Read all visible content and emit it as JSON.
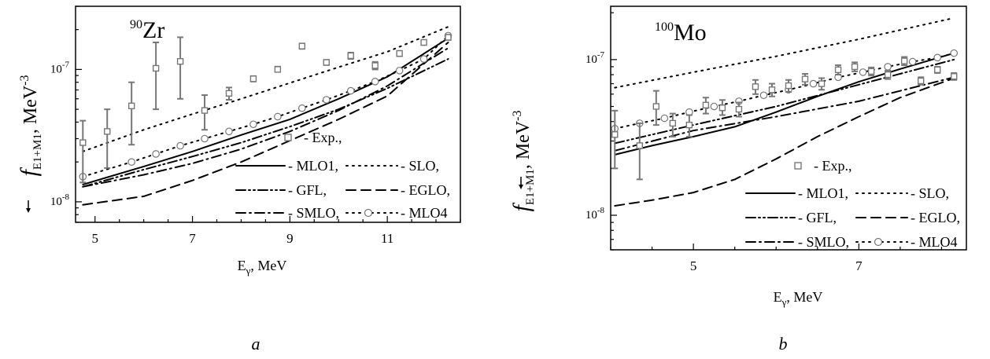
{
  "chart_data": [
    {
      "type": "line",
      "panel_label": "a",
      "title_sup": "90",
      "title_main": "Zr",
      "xlabel_main": "E",
      "xlabel_sub": "γ",
      "xlabel_tail": ", MeV",
      "ylabel_main": "f",
      "ylabel_sub": "E1+M1",
      "ylabel_unit": ", MeV",
      "ylabel_unit_sup": "-3",
      "xlim": [
        4.6,
        12.5
      ],
      "ylim": [
        7e-09,
        3e-07
      ],
      "yscale": "log",
      "x_ticks": [
        5,
        7,
        9,
        11
      ],
      "x_tick_labels": [
        "5",
        "7",
        "9",
        "11"
      ],
      "y_ticks": [
        1e-08,
        1e-07
      ],
      "y_tick_labels": [
        {
          "base": "10",
          "exp": "-8"
        },
        {
          "base": "10",
          "exp": "-7"
        }
      ],
      "legend_entries": [
        {
          "id": "exp",
          "label": "- Exp.,"
        },
        {
          "id": "MLO1",
          "label": "- MLO1,"
        },
        {
          "id": "SLO",
          "label": "- SLO,"
        },
        {
          "id": "GFL",
          "label": "- GFL,"
        },
        {
          "id": "EGLO",
          "label": "- EGLO,"
        },
        {
          "id": "SMLO",
          "label": "- SMLO,"
        },
        {
          "id": "MLO4",
          "label": "- MLO4"
        }
      ],
      "experimental": {
        "name": "Exp.",
        "points": [
          {
            "x": 4.75,
            "y": 2.8e-08,
            "lo": 1.4e-08,
            "hi": 4.1e-08
          },
          {
            "x": 5.25,
            "y": 3.4e-08,
            "lo": 1.8e-08,
            "hi": 5e-08
          },
          {
            "x": 5.75,
            "y": 5.3e-08,
            "lo": 2.7e-08,
            "hi": 8e-08
          },
          {
            "x": 6.25,
            "y": 1.02e-07,
            "lo": 5e-08,
            "hi": 1.6e-07
          },
          {
            "x": 6.75,
            "y": 1.15e-07,
            "lo": 6e-08,
            "hi": 1.75e-07
          },
          {
            "x": 7.25,
            "y": 4.9e-08,
            "lo": 3.5e-08,
            "hi": 6.4e-08
          },
          {
            "x": 7.75,
            "y": 6.6e-08,
            "lo": 5.9e-08,
            "hi": 7.3e-08
          },
          {
            "x": 8.25,
            "y": 8.5e-08,
            "lo": 8.1e-08,
            "hi": 8.9e-08
          },
          {
            "x": 8.75,
            "y": 1e-07,
            "lo": 9.6e-08,
            "hi": 1.05e-07
          },
          {
            "x": 9.25,
            "y": 1.5e-07,
            "lo": 1.43e-07,
            "hi": 1.57e-07
          },
          {
            "x": 9.75,
            "y": 1.13e-07,
            "lo": 1.08e-07,
            "hi": 1.18e-07
          },
          {
            "x": 10.25,
            "y": 1.27e-07,
            "lo": 1.2e-07,
            "hi": 1.34e-07
          },
          {
            "x": 10.75,
            "y": 1.07e-07,
            "lo": 1e-07,
            "hi": 1.14e-07
          },
          {
            "x": 11.25,
            "y": 1.32e-07,
            "lo": 1.26e-07,
            "hi": 1.38e-07
          },
          {
            "x": 11.75,
            "y": 1.6e-07,
            "lo": 1.53e-07,
            "hi": 1.67e-07
          },
          {
            "x": 12.25,
            "y": 1.75e-07,
            "lo": 1.67e-07,
            "hi": 1.83e-07
          }
        ]
      },
      "series": [
        {
          "id": "MLO1",
          "dash": "solid",
          "x": [
            4.75,
            6,
            7,
            8,
            9,
            10,
            11,
            12.25
          ],
          "y": [
            1.35e-08,
            1.85e-08,
            2.4e-08,
            3.2e-08,
            4.2e-08,
            6e-08,
            8.8e-08,
            1.72e-07
          ]
        },
        {
          "id": "SLO",
          "dash": "dot",
          "x": [
            4.75,
            6,
            7,
            8,
            9,
            10,
            11,
            12.25
          ],
          "y": [
            2.4e-08,
            3.5e-08,
            4.6e-08,
            6e-08,
            7.9e-08,
            1.04e-07,
            1.36e-07,
            2.1e-07
          ]
        },
        {
          "id": "GFL",
          "dash": "dashdotdot",
          "x": [
            4.75,
            6,
            7,
            8,
            9,
            10,
            11,
            12.25
          ],
          "y": [
            1.3e-08,
            1.75e-08,
            2.2e-08,
            2.8e-08,
            3.7e-08,
            5e-08,
            7.2e-08,
            1.2e-07
          ]
        },
        {
          "id": "EGLO",
          "dash": "dash",
          "x": [
            4.75,
            6,
            7,
            8,
            9,
            10,
            11,
            12.25
          ],
          "y": [
            9.5e-09,
            1.1e-08,
            1.45e-08,
            2e-08,
            2.9e-08,
            4.2e-08,
            6.3e-08,
            1.6e-07
          ]
        },
        {
          "id": "SMLO",
          "dash": "dashdot",
          "x": [
            4.75,
            6,
            7,
            8,
            9,
            10,
            11,
            12.25
          ],
          "y": [
            1.3e-08,
            1.6e-08,
            1.95e-08,
            2.5e-08,
            3.4e-08,
            4.9e-08,
            7.5e-08,
            1.45e-07
          ]
        },
        {
          "id": "MLO4",
          "dash": "dot",
          "markers": "circle",
          "x": [
            4.75,
            5.75,
            6.25,
            6.75,
            7.25,
            7.75,
            8.25,
            8.75,
            9.25,
            9.75,
            10.25,
            10.75,
            11.25,
            11.75,
            12.25
          ],
          "y": [
            1.55e-08,
            2e-08,
            2.3e-08,
            2.65e-08,
            3e-08,
            3.4e-08,
            3.85e-08,
            4.4e-08,
            5.1e-08,
            5.9e-08,
            6.9e-08,
            8.1e-08,
            9.8e-08,
            1.2e-07,
            1.8e-07
          ]
        }
      ]
    },
    {
      "type": "line",
      "panel_label": "b",
      "title_sup": "100",
      "title_main": "Mo",
      "xlabel_main": "E",
      "xlabel_sub": "γ",
      "xlabel_tail": ", MeV",
      "ylabel_main": "f",
      "ylabel_sub": "E1+M1",
      "ylabel_unit": ", MeV",
      "ylabel_unit_sup": "-3",
      "xlim": [
        4.0,
        8.3
      ],
      "ylim": [
        6e-09,
        2.2e-07
      ],
      "yscale": "log",
      "x_ticks": [
        5,
        7
      ],
      "x_tick_labels": [
        "5",
        "7"
      ],
      "y_ticks": [
        1e-08,
        1e-07
      ],
      "y_tick_labels": [
        {
          "base": "10",
          "exp": "-8"
        },
        {
          "base": "10",
          "exp": "-7"
        }
      ],
      "legend_entries": [
        {
          "id": "exp",
          "label": "- Exp.,"
        },
        {
          "id": "MLO1",
          "label": "- MLO1,"
        },
        {
          "id": "SLO",
          "label": "- SLO,"
        },
        {
          "id": "GFL",
          "label": "- GFL,"
        },
        {
          "id": "EGLO",
          "label": "- EGLO,"
        },
        {
          "id": "SMLO",
          "label": "- SMLO,"
        },
        {
          "id": "MLO4",
          "label": "- MLO4"
        }
      ],
      "experimental": {
        "name": "Exp.",
        "points": [
          {
            "x": 4.05,
            "y": 3.3e-08,
            "lo": 2e-08,
            "hi": 4.7e-08
          },
          {
            "x": 4.35,
            "y": 2.8e-08,
            "lo": 1.7e-08,
            "hi": 3.9e-08
          },
          {
            "x": 4.55,
            "y": 5e-08,
            "lo": 3.8e-08,
            "hi": 6.3e-08
          },
          {
            "x": 4.75,
            "y": 3.9e-08,
            "lo": 3.2e-08,
            "hi": 4.5e-08
          },
          {
            "x": 4.95,
            "y": 3.8e-08,
            "lo": 3.2e-08,
            "hi": 4.4e-08
          },
          {
            "x": 5.15,
            "y": 5.1e-08,
            "lo": 4.5e-08,
            "hi": 5.7e-08
          },
          {
            "x": 5.35,
            "y": 4.9e-08,
            "lo": 4.4e-08,
            "hi": 5.5e-08
          },
          {
            "x": 5.55,
            "y": 4.8e-08,
            "lo": 4.3e-08,
            "hi": 5.3e-08
          },
          {
            "x": 5.75,
            "y": 6.7e-08,
            "lo": 6e-08,
            "hi": 7.4e-08
          },
          {
            "x": 5.95,
            "y": 6.4e-08,
            "lo": 5.8e-08,
            "hi": 7e-08
          },
          {
            "x": 6.15,
            "y": 6.8e-08,
            "lo": 6.2e-08,
            "hi": 7.4e-08
          },
          {
            "x": 6.35,
            "y": 7.5e-08,
            "lo": 6.9e-08,
            "hi": 8.1e-08
          },
          {
            "x": 6.55,
            "y": 7e-08,
            "lo": 6.4e-08,
            "hi": 7.6e-08
          },
          {
            "x": 6.75,
            "y": 8.6e-08,
            "lo": 8e-08,
            "hi": 9.2e-08
          },
          {
            "x": 6.95,
            "y": 9e-08,
            "lo": 8.4e-08,
            "hi": 9.6e-08
          },
          {
            "x": 7.15,
            "y": 8.4e-08,
            "lo": 7.9e-08,
            "hi": 8.9e-08
          },
          {
            "x": 7.35,
            "y": 8e-08,
            "lo": 7.5e-08,
            "hi": 8.5e-08
          },
          {
            "x": 7.55,
            "y": 9.8e-08,
            "lo": 9.2e-08,
            "hi": 1.04e-07
          },
          {
            "x": 7.75,
            "y": 7.3e-08,
            "lo": 6.9e-08,
            "hi": 7.7e-08
          },
          {
            "x": 7.95,
            "y": 8.6e-08,
            "lo": 8.2e-08,
            "hi": 9e-08
          },
          {
            "x": 8.15,
            "y": 7.8e-08,
            "lo": 7.4e-08,
            "hi": 8.2e-08
          }
        ]
      },
      "series": [
        {
          "id": "MLO1",
          "dash": "solid",
          "x": [
            4.05,
            4.5,
            5.0,
            5.5,
            6.0,
            6.5,
            7.0,
            7.5,
            8.15
          ],
          "y": [
            2.45e-08,
            2.8e-08,
            3.2e-08,
            3.7e-08,
            4.6e-08,
            5.8e-08,
            7.2e-08,
            8.7e-08,
            1.1e-07
          ]
        },
        {
          "id": "SLO",
          "dash": "dot",
          "x": [
            4.05,
            5.0,
            6.0,
            7.0,
            8.15
          ],
          "y": [
            6.6e-08,
            8.3e-08,
            1.05e-07,
            1.35e-07,
            1.85e-07
          ]
        },
        {
          "id": "GFL",
          "dash": "dashdotdot",
          "x": [
            4.05,
            5.0,
            6.0,
            7.0,
            8.15
          ],
          "y": [
            2.9e-08,
            3.8e-08,
            5e-08,
            6.9e-08,
            1e-07
          ]
        },
        {
          "id": "EGLO",
          "dash": "dash",
          "x": [
            4.05,
            4.5,
            5.0,
            5.5,
            6.0,
            6.5,
            7.0,
            7.5,
            8.15
          ],
          "y": [
            1.15e-08,
            1.25e-08,
            1.4e-08,
            1.7e-08,
            2.3e-08,
            3.2e-08,
            4.3e-08,
            5.7e-08,
            7.6e-08
          ]
        },
        {
          "id": "SMLO",
          "dash": "dashdot",
          "x": [
            4.05,
            5.0,
            6.0,
            7.0,
            8.15
          ],
          "y": [
            2.6e-08,
            3.5e-08,
            4.3e-08,
            5.4e-08,
            7.7e-08
          ]
        },
        {
          "id": "MLO4",
          "dash": "dot",
          "markers": "circle",
          "x": [
            4.05,
            4.35,
            4.65,
            4.95,
            5.25,
            5.55,
            5.85,
            6.15,
            6.45,
            6.75,
            7.05,
            7.35,
            7.65,
            7.95,
            8.15
          ],
          "y": [
            3.6e-08,
            3.9e-08,
            4.2e-08,
            4.6e-08,
            5e-08,
            5.4e-08,
            5.9e-08,
            6.4e-08,
            7e-08,
            7.7e-08,
            8.3e-08,
            9e-08,
            9.7e-08,
            1.03e-07,
            1.1e-07
          ]
        }
      ]
    }
  ]
}
